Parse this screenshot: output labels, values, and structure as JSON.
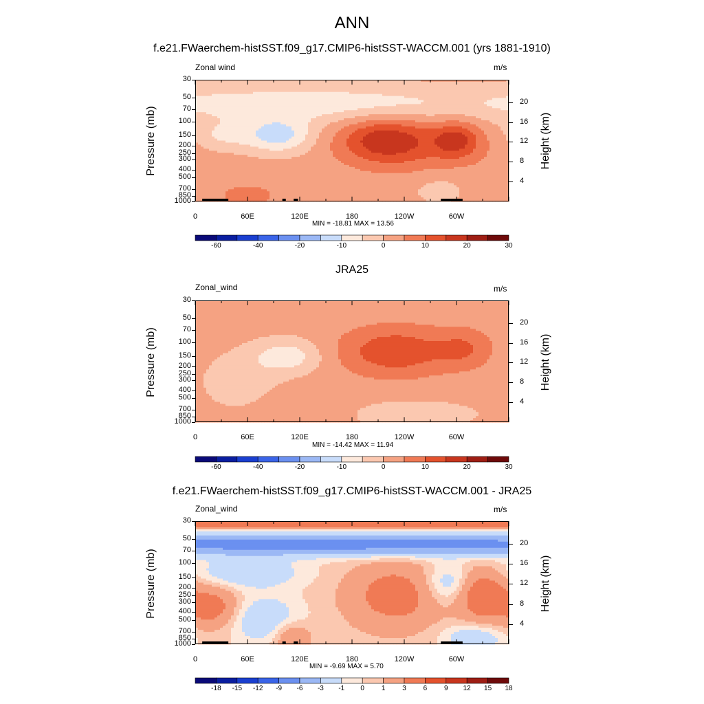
{
  "page_title": "ANN",
  "panels": [
    {
      "title": "f.e21.FWaerchem-histSST.f09_g17.CMIP6-histSST-WACCM.001 (yrs 1881-1910)",
      "var_label": "Zonal wind",
      "units": "m/s",
      "stats": "MIN = -18.81  MAX =  13.56"
    },
    {
      "title": "JRA25",
      "var_label": "Zonal_wind",
      "units": "m/s",
      "stats": "MIN = -14.42  MAX =  11.94"
    },
    {
      "title": "f.e21.FWaerchem-histSST.f09_g17.CMIP6-histSST-WACCM.001 - JRA25",
      "var_label": "Zonal_wind",
      "units": "m/s",
      "stats": "MIN =  -9.69  MAX =   5.70"
    }
  ],
  "axes": {
    "ylabel_left": "Pressure (mb)",
    "ylabel_right": "Height (km)",
    "pressure_ticks": [
      "30",
      "50",
      "70",
      "100",
      "150",
      "200",
      "250",
      "300",
      "400",
      "500",
      "700",
      "850",
      "1000"
    ],
    "height_ticks": [
      "20",
      "16",
      "12",
      "8",
      "4"
    ],
    "lon_ticks": [
      "0",
      "60E",
      "120E",
      "180",
      "120W",
      "60W"
    ]
  },
  "colorbars": {
    "abs_labels": [
      "-60",
      "-40",
      "-20",
      "-10",
      "0",
      "10",
      "20",
      "30"
    ],
    "diff_labels": [
      "-18",
      "-15",
      "-12",
      "-9",
      "-6",
      "-3",
      "-1",
      "0",
      "1",
      "3",
      "6",
      "9",
      "12",
      "15",
      "18"
    ],
    "colors": [
      "#0a0a78",
      "#0a1ea0",
      "#1a3fd0",
      "#3a64e8",
      "#6b90f0",
      "#9bb8f5",
      "#c8dcfa",
      "#fde9dc",
      "#fbc8b0",
      "#f5a282",
      "#f07a55",
      "#e4522d",
      "#c8361e",
      "#9e1e14",
      "#6e0a0a"
    ]
  },
  "chart_data": [
    {
      "type": "heatmap",
      "title": "f.e21.FWaerchem-histSST.f09_g17.CMIP6-histSST-WACCM.001 (yrs 1881-1910)",
      "variable": "Zonal wind",
      "units": "m/s",
      "ylabel": "Pressure (mb)",
      "ylabel_right": "Height (km)",
      "x_ticks": [
        "0",
        "60E",
        "120E",
        "180",
        "120W",
        "60W"
      ],
      "y_ticks": [
        "30",
        "50",
        "70",
        "100",
        "150",
        "200",
        "250",
        "300",
        "400",
        "500",
        "700",
        "850",
        "1000"
      ],
      "min": -18.81,
      "max": 13.56,
      "levels": [
        -70,
        -60,
        -50,
        -40,
        -30,
        -20,
        -15,
        -10,
        -5,
        0,
        5,
        10,
        15,
        20,
        25,
        30
      ],
      "background": 2,
      "blobs": [
        {
          "lon": 95,
          "p": 150,
          "sx": 28,
          "sy": 0.35,
          "amp": -14
        },
        {
          "lon": 30,
          "p": 150,
          "sx": 25,
          "sy": 0.3,
          "amp": -7
        },
        {
          "lon": 130,
          "p": 60,
          "sx": 200,
          "sy": 0.4,
          "amp": -10
        },
        {
          "lon": 215,
          "p": 170,
          "sx": 35,
          "sy": 0.45,
          "amp": 13.5
        },
        {
          "lon": 300,
          "p": 170,
          "sx": 18,
          "sy": 0.35,
          "amp": 12
        },
        {
          "lon": 260,
          "p": 200,
          "sx": 55,
          "sy": 0.6,
          "amp": 6
        },
        {
          "lon": 60,
          "p": 850,
          "sx": 35,
          "sy": 0.35,
          "amp": 4
        },
        {
          "lon": 280,
          "p": 700,
          "sx": 25,
          "sy": 0.35,
          "amp": -4
        }
      ],
      "land": [
        [
          8,
          20
        ],
        [
          18,
          28
        ],
        [
          25,
          38
        ],
        [
          100,
          104
        ],
        [
          113,
          118
        ],
        [
          282,
          307
        ]
      ]
    },
    {
      "type": "heatmap",
      "title": "JRA25",
      "variable": "Zonal_wind",
      "units": "m/s",
      "ylabel": "Pressure (mb)",
      "ylabel_right": "Height (km)",
      "x_ticks": [
        "0",
        "60E",
        "120E",
        "180",
        "120W",
        "60W"
      ],
      "y_ticks": [
        "30",
        "50",
        "70",
        "100",
        "150",
        "200",
        "250",
        "300",
        "400",
        "500",
        "700",
        "850",
        "1000"
      ],
      "min": -14.42,
      "max": 11.94,
      "levels": [
        -70,
        -60,
        -50,
        -40,
        -30,
        -20,
        -15,
        -10,
        -5,
        0,
        5,
        10,
        15,
        20,
        25,
        30
      ],
      "background": 2,
      "blobs": [
        {
          "lon": 105,
          "p": 150,
          "sx": 28,
          "sy": 0.35,
          "amp": -10
        },
        {
          "lon": 50,
          "p": 300,
          "sx": 30,
          "sy": 0.55,
          "amp": -5
        },
        {
          "lon": 230,
          "p": 130,
          "sx": 45,
          "sy": 0.5,
          "amp": 12
        },
        {
          "lon": 310,
          "p": 120,
          "sx": 22,
          "sy": 0.4,
          "amp": 7
        },
        {
          "lon": 250,
          "p": 800,
          "sx": 55,
          "sy": 0.3,
          "amp": -5
        },
        {
          "lon": 130,
          "p": 700,
          "sx": 30,
          "sy": 0.35,
          "amp": 3
        }
      ],
      "land": []
    },
    {
      "type": "heatmap",
      "title": "f.e21.FWaerchem-histSST.f09_g17.CMIP6-histSST-WACCM.001 - JRA25",
      "variable": "Zonal_wind",
      "units": "m/s",
      "ylabel": "Pressure (mb)",
      "ylabel_right": "Height (km)",
      "x_ticks": [
        "0",
        "60E",
        "120E",
        "180",
        "120W",
        "60W"
      ],
      "y_ticks": [
        "30",
        "50",
        "70",
        "100",
        "150",
        "200",
        "250",
        "300",
        "400",
        "500",
        "700",
        "850",
        "1000"
      ],
      "min": -9.69,
      "max": 5.7,
      "levels": [
        -21,
        -18,
        -15,
        -12,
        -9,
        -6,
        -3,
        -1,
        0,
        1,
        3,
        6,
        9,
        12,
        15,
        18
      ],
      "background": 0.5,
      "blobs": [
        {
          "lon": 175,
          "p": 58,
          "sx": 400,
          "sy": 0.22,
          "amp": -8
        },
        {
          "lon": 175,
          "p": 33,
          "sx": 400,
          "sy": 0.1,
          "amp": 4
        },
        {
          "lon": 60,
          "p": 130,
          "sx": 45,
          "sy": 0.3,
          "amp": -3
        },
        {
          "lon": 230,
          "p": 250,
          "sx": 35,
          "sy": 0.6,
          "amp": 4
        },
        {
          "lon": 330,
          "p": 250,
          "sx": 20,
          "sy": 0.5,
          "amp": 5
        },
        {
          "lon": 20,
          "p": 350,
          "sx": 20,
          "sy": 0.4,
          "amp": 4
        },
        {
          "lon": 80,
          "p": 500,
          "sx": 30,
          "sy": 0.5,
          "amp": -3
        },
        {
          "lon": 110,
          "p": 800,
          "sx": 15,
          "sy": 0.3,
          "amp": 3
        },
        {
          "lon": 290,
          "p": 180,
          "sx": 20,
          "sy": 0.4,
          "amp": -3
        },
        {
          "lon": 320,
          "p": 850,
          "sx": 25,
          "sy": 0.3,
          "amp": -3
        }
      ],
      "land": [
        [
          8,
          20
        ],
        [
          18,
          28
        ],
        [
          25,
          38
        ],
        [
          100,
          104
        ],
        [
          113,
          118
        ],
        [
          282,
          307
        ]
      ]
    }
  ]
}
